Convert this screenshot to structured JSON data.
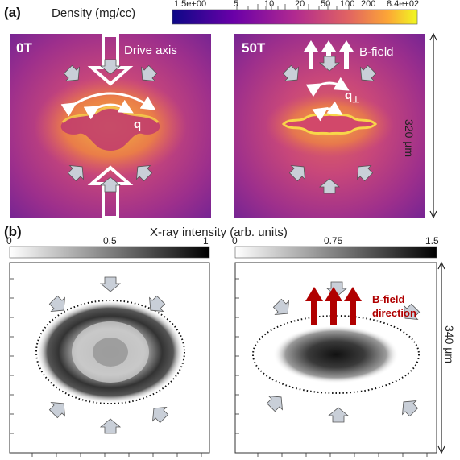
{
  "panel_a": {
    "label": "(a)",
    "colorbar_title": "Density (mg/cc)",
    "colorbar_ticks": [
      "1.5e+00",
      "5",
      "10",
      "20",
      "50",
      "100",
      "200",
      "8.4e+02"
    ],
    "left_image": {
      "title": "0T",
      "annotation": "Drive axis",
      "symbol": "q"
    },
    "right_image": {
      "title": "50T",
      "annotation": "B-field",
      "symbol": "q",
      "symbol_subscript": "⊥"
    },
    "scale_label": "320 μm"
  },
  "panel_b": {
    "label": "(b)",
    "colorbar_title": "X-ray intensity (arb. units)",
    "left_colorbar_ticks": [
      "0",
      "0.5",
      "1"
    ],
    "right_colorbar_ticks": [
      "0",
      "0.75",
      "1.5"
    ],
    "annotation_line1": "B-field",
    "annotation_line2": "direction",
    "scale_label": "340 μm"
  },
  "colors": {
    "plasma_low": "#2a0a86",
    "plasma_mid": "#b0367e",
    "plasma_high": "#f5e133",
    "annotation_red": "#b00000"
  }
}
